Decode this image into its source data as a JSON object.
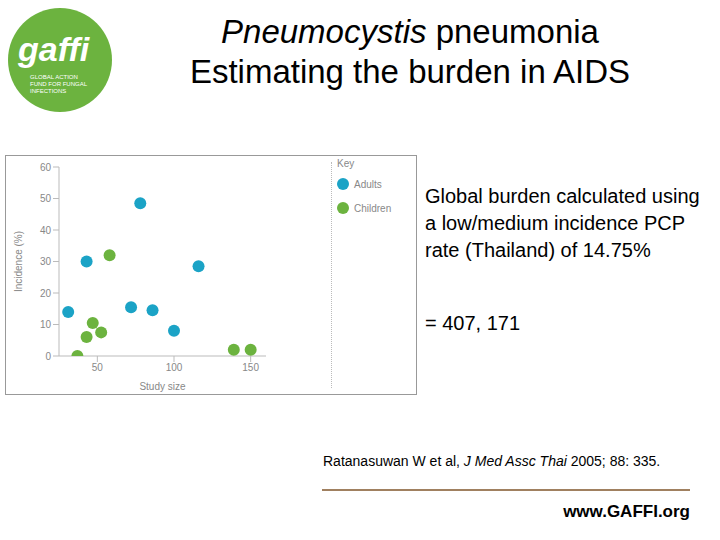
{
  "logo": {
    "name": "gaffi",
    "tagline": "GLOBAL ACTION FUND FOR FUNGAL INFECTIONS"
  },
  "title": [
    "Pneumocystis pneumonia",
    "Estimating the burden in AIDS"
  ],
  "title_italic": "Pneumocystis",
  "text": "Global burden calculated using a low/medium incidence PCP rate (Thailand) of 14.75%",
  "result": "= 407, 171",
  "citation": {
    "author": "Ratanasuwan W et al,",
    "journal": "J Med Assc Thai",
    "details": "2005; 88: 335."
  },
  "url": "www.GAFFI.org",
  "chart_data": {
    "type": "scatter",
    "x_label": "Study size",
    "y_label": "Incidence (%)",
    "legend_title": "Key",
    "legend": "right",
    "marker": "circle",
    "xlim": [
      25,
      160
    ],
    "xticks": [
      50,
      100,
      150
    ],
    "ylim": [
      0,
      60
    ],
    "yticks": [
      0,
      10,
      20,
      30,
      40,
      50,
      60
    ],
    "series": [
      {
        "name": "Adults",
        "color": "#1ba3c6",
        "x": [
          31,
          43,
          78,
          72,
          86,
          100,
          116
        ],
        "values": [
          14,
          30,
          48.5,
          15.5,
          14.5,
          8,
          28.5
        ]
      },
      {
        "name": "Children",
        "color": "#6cb33f",
        "x": [
          58,
          37,
          43,
          47,
          52.5,
          139,
          150
        ],
        "values": [
          32,
          0,
          6,
          10.5,
          7.5,
          2,
          2
        ]
      }
    ]
  }
}
